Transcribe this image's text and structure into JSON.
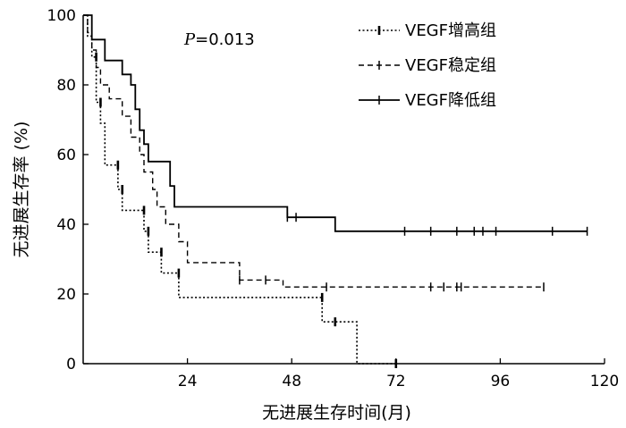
{
  "chart_data": {
    "type": "line",
    "title": "",
    "xlabel": "无进展生存时间(月)",
    "ylabel": "无进展生存率 (%)",
    "xlim": [
      0,
      120
    ],
    "ylim": [
      0,
      100
    ],
    "xticks": [
      24,
      48,
      72,
      96,
      120
    ],
    "yticks": [
      0,
      20,
      40,
      60,
      80,
      100
    ],
    "grid": false,
    "legend_position": "top-right",
    "annotation": {
      "prefix": "P",
      "text": "=0.013"
    },
    "series": [
      {
        "name": "VEGF增高组",
        "style": "dotted",
        "steps": [
          [
            0,
            100
          ],
          [
            1,
            100
          ],
          [
            1,
            94
          ],
          [
            2,
            94
          ],
          [
            2,
            88
          ],
          [
            3,
            88
          ],
          [
            3,
            75
          ],
          [
            4,
            75
          ],
          [
            4,
            69
          ],
          [
            5,
            69
          ],
          [
            5,
            57
          ],
          [
            8,
            57
          ],
          [
            8,
            50
          ],
          [
            9,
            50
          ],
          [
            9,
            44
          ],
          [
            14,
            44
          ],
          [
            14,
            38
          ],
          [
            15,
            38
          ],
          [
            15,
            32
          ],
          [
            18,
            32
          ],
          [
            18,
            26
          ],
          [
            22,
            26
          ],
          [
            22,
            19
          ],
          [
            55,
            19
          ],
          [
            55,
            12
          ],
          [
            63,
            12
          ],
          [
            63,
            0
          ],
          [
            72,
            0
          ]
        ],
        "censored": [
          [
            3,
            88
          ],
          [
            4,
            75
          ],
          [
            8,
            57
          ],
          [
            9,
            50
          ],
          [
            14,
            44
          ],
          [
            15,
            38
          ],
          [
            18,
            32
          ],
          [
            22,
            26
          ],
          [
            55,
            19
          ],
          [
            58,
            12
          ],
          [
            72,
            0
          ]
        ]
      },
      {
        "name": "VEGF稳定组",
        "style": "dashed",
        "steps": [
          [
            0,
            100
          ],
          [
            1,
            100
          ],
          [
            1,
            95
          ],
          [
            2,
            95
          ],
          [
            2,
            90
          ],
          [
            3,
            90
          ],
          [
            3,
            85
          ],
          [
            4,
            85
          ],
          [
            4,
            80
          ],
          [
            6,
            80
          ],
          [
            6,
            76
          ],
          [
            9,
            76
          ],
          [
            9,
            71
          ],
          [
            11,
            71
          ],
          [
            11,
            65
          ],
          [
            13,
            65
          ],
          [
            13,
            60
          ],
          [
            14,
            60
          ],
          [
            14,
            55
          ],
          [
            16,
            55
          ],
          [
            16,
            50
          ],
          [
            17,
            50
          ],
          [
            17,
            45
          ],
          [
            19,
            45
          ],
          [
            19,
            40
          ],
          [
            22,
            40
          ],
          [
            22,
            35
          ],
          [
            24,
            35
          ],
          [
            24,
            29
          ],
          [
            36,
            29
          ],
          [
            36,
            24
          ],
          [
            46,
            24
          ],
          [
            46,
            22
          ],
          [
            106,
            22
          ]
        ],
        "censored": [
          [
            36,
            24
          ],
          [
            42,
            24
          ],
          [
            56,
            22
          ],
          [
            80,
            22
          ],
          [
            83,
            22
          ],
          [
            86,
            22
          ],
          [
            87,
            22
          ],
          [
            106,
            22
          ]
        ]
      },
      {
        "name": "VEGF降低组",
        "style": "solid",
        "steps": [
          [
            0,
            100
          ],
          [
            2,
            100
          ],
          [
            2,
            93
          ],
          [
            5,
            93
          ],
          [
            5,
            87
          ],
          [
            9,
            87
          ],
          [
            9,
            83
          ],
          [
            11,
            83
          ],
          [
            11,
            80
          ],
          [
            12,
            80
          ],
          [
            12,
            73
          ],
          [
            13,
            73
          ],
          [
            13,
            67
          ],
          [
            14,
            67
          ],
          [
            14,
            63
          ],
          [
            15,
            63
          ],
          [
            15,
            58
          ],
          [
            20,
            58
          ],
          [
            20,
            51
          ],
          [
            21,
            51
          ],
          [
            21,
            45
          ],
          [
            47,
            45
          ],
          [
            47,
            42
          ],
          [
            58,
            42
          ],
          [
            58,
            38
          ],
          [
            116,
            38
          ]
        ],
        "censored": [
          [
            47,
            42
          ],
          [
            49,
            42
          ],
          [
            74,
            38
          ],
          [
            80,
            38
          ],
          [
            86,
            38
          ],
          [
            90,
            38
          ],
          [
            92,
            38
          ],
          [
            95,
            38
          ],
          [
            108,
            38
          ],
          [
            116,
            38
          ]
        ]
      }
    ]
  }
}
